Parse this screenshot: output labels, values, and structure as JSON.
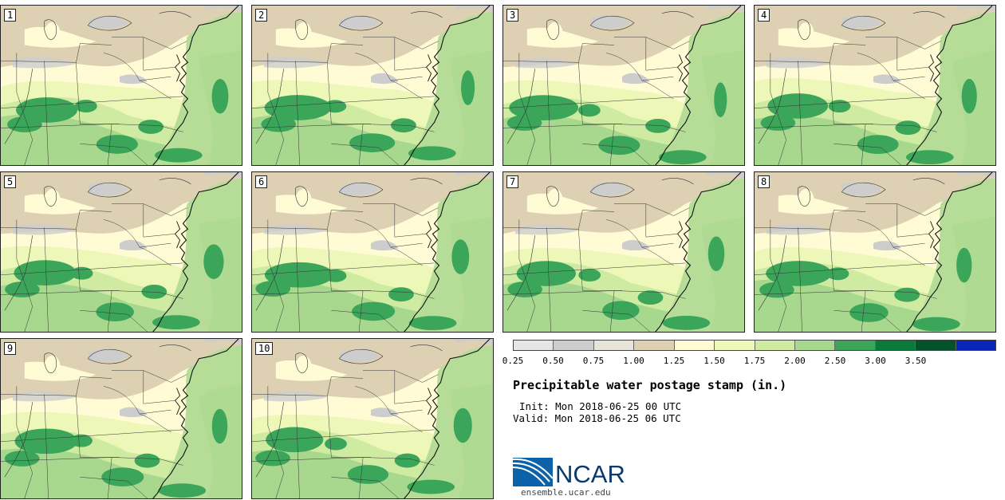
{
  "members": [
    "1",
    "2",
    "3",
    "4",
    "5",
    "6",
    "7",
    "8",
    "9",
    "10"
  ],
  "colorbar": {
    "ticks": [
      "0.25",
      "0.50",
      "0.75",
      "1.00",
      "1.25",
      "1.50",
      "1.75",
      "2.00",
      "2.50",
      "3.00",
      "3.50"
    ],
    "colors": [
      "#e6e6e6",
      "#cdcdcd",
      "#e7e5d9",
      "#ddd0b3",
      "#fffbd5",
      "#ecf7b8",
      "#cfeba2",
      "#a7d88d",
      "#3ba55a",
      "#0a7a3a",
      "#04522a",
      "#0a25b8"
    ]
  },
  "map_colors": {
    "tan": "#ddd0b3",
    "gray": "#cdcdcd",
    "pale": "#fffbd5",
    "light_green": "#ecf7b8",
    "mid_green": "#cfeba2",
    "green": "#a7d88d",
    "dark_green": "#3ba55a",
    "water_green": "#b5dd98"
  },
  "title": "Precipitable water postage stamp (in.)",
  "init": "Init: Mon 2018-06-25 00 UTC",
  "valid": "Valid: Mon 2018-06-25 06 UTC",
  "logo": {
    "text": "NCAR",
    "url": "ensemble.ucar.edu"
  }
}
